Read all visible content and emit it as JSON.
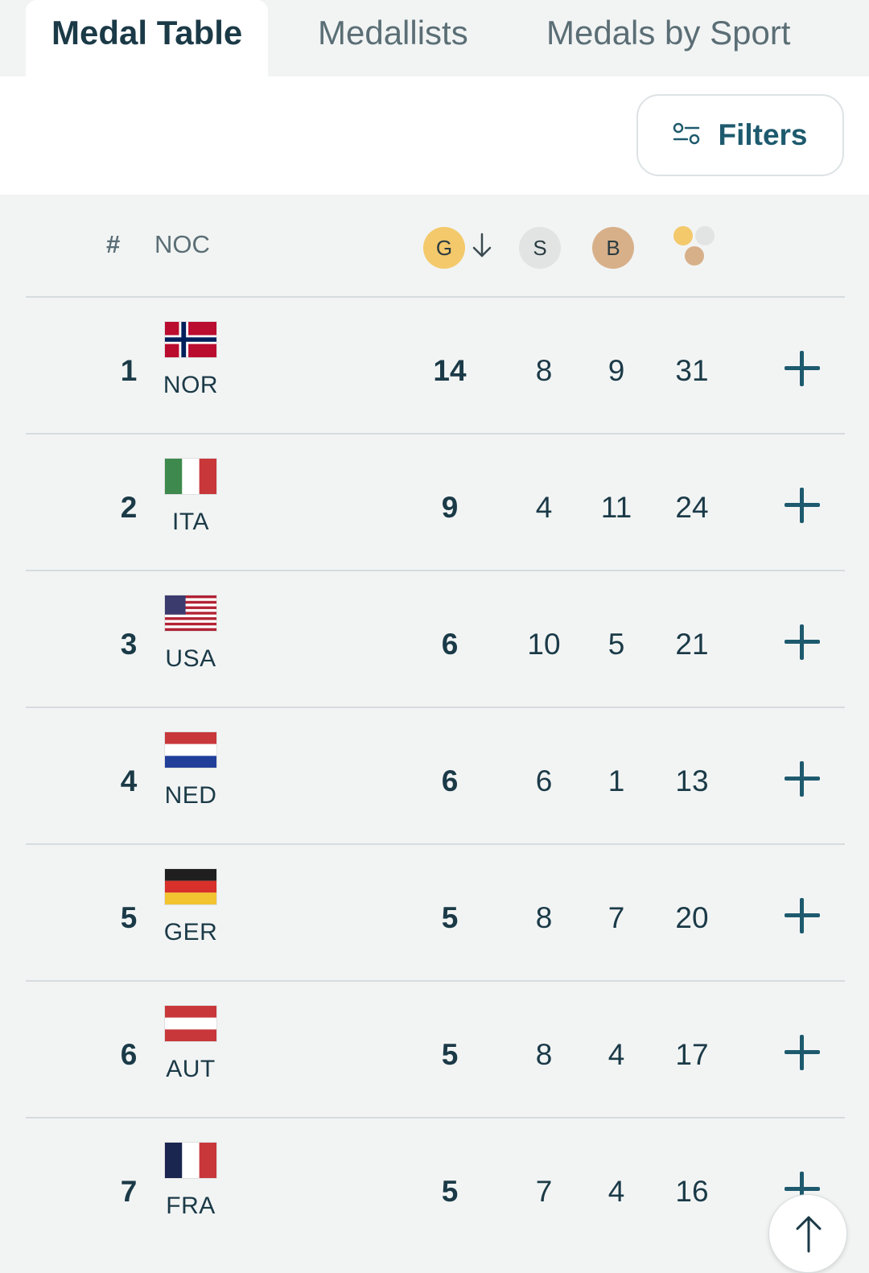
{
  "tabs": [
    {
      "label": "Medal Table",
      "active": true
    },
    {
      "label": "Medallists",
      "active": false
    },
    {
      "label": "Medals by Sport",
      "active": false
    }
  ],
  "filters": {
    "label": "Filters",
    "icon": "filter-sliders-icon"
  },
  "table": {
    "headers": {
      "rank": "#",
      "noc": "NOC",
      "gold": "G",
      "silver": "S",
      "bronze": "B",
      "sort_icon": "arrow-down-icon",
      "total_icon": "medal-cluster-icon"
    },
    "rows": [
      {
        "rank": "1",
        "code": "NOR",
        "gold": "14",
        "silver": "8",
        "bronze": "9",
        "total": "31"
      },
      {
        "rank": "2",
        "code": "ITA",
        "gold": "9",
        "silver": "4",
        "bronze": "11",
        "total": "24"
      },
      {
        "rank": "3",
        "code": "USA",
        "gold": "6",
        "silver": "10",
        "bronze": "5",
        "total": "21"
      },
      {
        "rank": "4",
        "code": "NED",
        "gold": "6",
        "silver": "6",
        "bronze": "1",
        "total": "13"
      },
      {
        "rank": "5",
        "code": "GER",
        "gold": "5",
        "silver": "8",
        "bronze": "7",
        "total": "20"
      },
      {
        "rank": "6",
        "code": "AUT",
        "gold": "5",
        "silver": "8",
        "bronze": "4",
        "total": "17"
      },
      {
        "rank": "7",
        "code": "FRA",
        "gold": "5",
        "silver": "7",
        "bronze": "4",
        "total": "16"
      }
    ]
  },
  "colors": {
    "gold": "#f3c96b",
    "silver": "#e2e4e4",
    "bronze": "#d7b08a",
    "accent": "#1e5a6e",
    "text": "#1b3a47"
  },
  "scroll_top": {
    "icon": "arrow-up-icon"
  }
}
